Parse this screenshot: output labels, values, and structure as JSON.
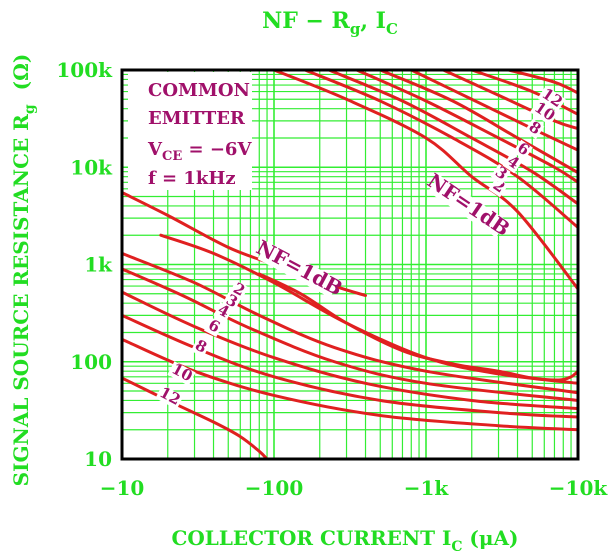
{
  "chart_data": {
    "type": "line",
    "title_main": "NF − R",
    "title_sub": "g",
    "title_tail": ", I",
    "title_tail_sub": "C",
    "xlabel_main": "COLLECTOR CURRENT I",
    "xlabel_sub": "C",
    "xlabel_unit": " (μA)",
    "ylabel_main": "SIGNAL SOURCE RESISTANCE R",
    "ylabel_sub": "g",
    "ylabel_unit": "(Ω)",
    "x_scale": "log",
    "y_scale": "log",
    "xlim": [
      10,
      10000
    ],
    "ylim": [
      10,
      100000
    ],
    "x_ticks": [
      {
        "value": 10,
        "label": "−10"
      },
      {
        "value": 100,
        "label": "−100"
      },
      {
        "value": 1000,
        "label": "−1k"
      },
      {
        "value": 10000,
        "label": "−10k"
      }
    ],
    "y_ticks": [
      {
        "value": 10,
        "label": "10"
      },
      {
        "value": 100,
        "label": "100"
      },
      {
        "value": 1000,
        "label": "1k"
      },
      {
        "value": 10000,
        "label": "10k"
      },
      {
        "value": 100000,
        "label": "100k"
      }
    ],
    "grid": true,
    "conditions": {
      "line1": "COMMON",
      "line2": "EMITTER",
      "line3_main": "V",
      "line3_sub": "CE",
      "line3_tail": " = −6V",
      "line4": "f = 1kHz"
    },
    "colors": {
      "curve": "#e02020",
      "grid": "#33ee33",
      "label": "#a0106a",
      "axis_text": "#22dd22",
      "frame": "#000000"
    },
    "lower_labels": [
      {
        "text": "NF=1dB",
        "x": 140,
        "y": 800
      },
      {
        "text": "2",
        "x": 57,
        "y": 500
      },
      {
        "text": "3",
        "x": 51,
        "y": 380
      },
      {
        "text": "4",
        "x": 45,
        "y": 300
      },
      {
        "text": "6",
        "x": 39,
        "y": 210
      },
      {
        "text": "8",
        "x": 32,
        "y": 130
      },
      {
        "text": "10",
        "x": 24,
        "y": 70
      },
      {
        "text": "12",
        "x": 20,
        "y": 40
      }
    ],
    "upper_labels": [
      {
        "text": "NF=1dB",
        "x": 1800,
        "y": 3600
      },
      {
        "text": "2",
        "x": 2900,
        "y": 5800
      },
      {
        "text": "3",
        "x": 3000,
        "y": 7900
      },
      {
        "text": "4",
        "x": 3600,
        "y": 10200
      },
      {
        "text": "6",
        "x": 4200,
        "y": 14000
      },
      {
        "text": "8",
        "x": 5000,
        "y": 23000
      },
      {
        "text": "10",
        "x": 5800,
        "y": 34000
      },
      {
        "text": "12",
        "x": 6500,
        "y": 47000
      }
    ],
    "series": [
      {
        "name": "NF=1dB (lower)",
        "points": [
          [
            80,
            800
          ],
          [
            150,
            500
          ],
          [
            300,
            250
          ],
          [
            700,
            130
          ],
          [
            1500,
            95
          ],
          [
            3000,
            80
          ],
          [
            5000,
            68
          ],
          [
            7500,
            65
          ],
          [
            9000,
            70
          ],
          [
            10000,
            80
          ]
        ]
      },
      {
        "name": "2 (lower)",
        "points": [
          [
            18,
            2000
          ],
          [
            40,
            1300
          ],
          [
            100,
            650
          ],
          [
            300,
            250
          ],
          [
            1000,
            110
          ],
          [
            3000,
            75
          ],
          [
            10000,
            60
          ]
        ]
      },
      {
        "name": "3 (lower)",
        "points": [
          [
            10,
            1300
          ],
          [
            30,
            650
          ],
          [
            80,
            300
          ],
          [
            250,
            140
          ],
          [
            1000,
            80
          ],
          [
            10000,
            48
          ]
        ]
      },
      {
        "name": "4 (lower)",
        "points": [
          [
            10,
            900
          ],
          [
            25,
            480
          ],
          [
            70,
            220
          ],
          [
            250,
            100
          ],
          [
            1000,
            60
          ],
          [
            10000,
            40
          ]
        ]
      },
      {
        "name": "6 (lower)",
        "points": [
          [
            10,
            520
          ],
          [
            30,
            230
          ],
          [
            100,
            110
          ],
          [
            400,
            60
          ],
          [
            2000,
            40
          ],
          [
            10000,
            33
          ]
        ]
      },
      {
        "name": "8 (lower)",
        "points": [
          [
            10,
            300
          ],
          [
            30,
            140
          ],
          [
            100,
            70
          ],
          [
            500,
            40
          ],
          [
            3000,
            30
          ],
          [
            10000,
            27
          ]
        ]
      },
      {
        "name": "10 (lower)",
        "points": [
          [
            10,
            170
          ],
          [
            30,
            80
          ],
          [
            100,
            45
          ],
          [
            500,
            28
          ],
          [
            3000,
            22
          ],
          [
            10000,
            20
          ]
        ]
      },
      {
        "name": "12 (lower)",
        "points": [
          [
            10,
            68
          ],
          [
            20,
            40
          ],
          [
            40,
            24
          ],
          [
            60,
            17
          ],
          [
            80,
            12
          ],
          [
            90,
            10
          ]
        ]
      },
      {
        "name": "upper-1",
        "points": [
          [
            10,
            5500
          ],
          [
            20,
            3200
          ],
          [
            50,
            1500
          ],
          [
            100,
            1000
          ],
          [
            250,
            600
          ],
          [
            400,
            480
          ]
        ]
      },
      {
        "name": "NF=1dB (upper)",
        "points": [
          [
            100,
            100000
          ],
          [
            300,
            50000
          ],
          [
            1000,
            20000
          ],
          [
            2000,
            8000
          ],
          [
            4000,
            3500
          ],
          [
            10000,
            560
          ]
        ]
      },
      {
        "name": "2 (upper)",
        "points": [
          [
            160,
            100000
          ],
          [
            500,
            48000
          ],
          [
            1500,
            20000
          ],
          [
            4000,
            8000
          ],
          [
            10000,
            2400
          ]
        ]
      },
      {
        "name": "3 (upper)",
        "points": [
          [
            230,
            100000
          ],
          [
            700,
            48000
          ],
          [
            2000,
            20000
          ],
          [
            5000,
            9000
          ],
          [
            10000,
            4200
          ]
        ]
      },
      {
        "name": "4 (upper)",
        "points": [
          [
            350,
            100000
          ],
          [
            1000,
            48000
          ],
          [
            3000,
            20000
          ],
          [
            7000,
            10000
          ],
          [
            10000,
            7000
          ]
        ]
      },
      {
        "name": "6 (upper)",
        "points": [
          [
            500,
            100000
          ],
          [
            1500,
            48000
          ],
          [
            4000,
            20000
          ],
          [
            10000,
            8800
          ]
        ]
      },
      {
        "name": "8 (upper)",
        "points": [
          [
            800,
            100000
          ],
          [
            2000,
            50000
          ],
          [
            5000,
            25000
          ],
          [
            10000,
            15000
          ]
        ]
      },
      {
        "name": "10 (upper)",
        "points": [
          [
            1300,
            100000
          ],
          [
            3000,
            55000
          ],
          [
            7000,
            30000
          ],
          [
            10000,
            25000
          ]
        ]
      },
      {
        "name": "12 (upper)",
        "points": [
          [
            2000,
            100000
          ],
          [
            5000,
            60000
          ],
          [
            10000,
            35000
          ]
        ]
      },
      {
        "name": "top",
        "points": [
          [
            3500,
            100000
          ],
          [
            7000,
            75000
          ],
          [
            10000,
            58000
          ]
        ]
      }
    ]
  }
}
